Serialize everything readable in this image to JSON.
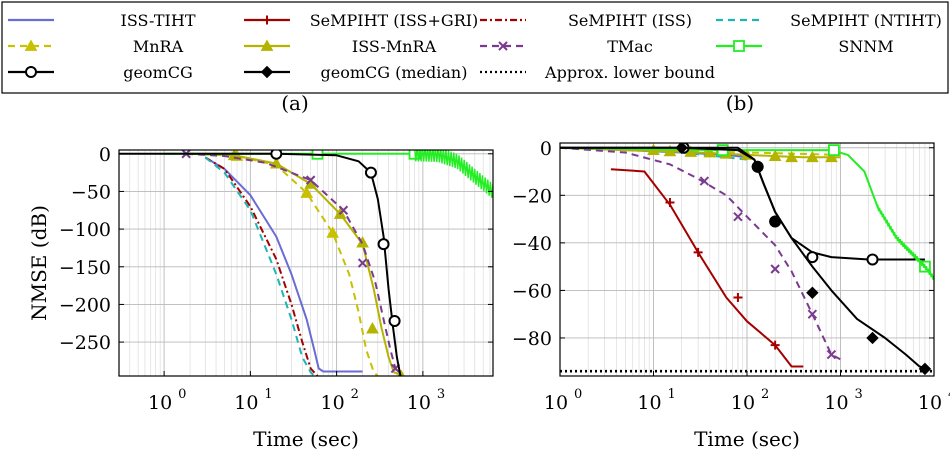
{
  "legend": {
    "entries": [
      {
        "label": "ISS-TIHT",
        "color": "#6b6bd6",
        "dash": "solid",
        "marker": "none"
      },
      {
        "label": "SeMPIHT (ISS+GRI)",
        "color": "#a50000",
        "dash": "solid",
        "marker": "plus"
      },
      {
        "label": "SeMPIHT (ISS)",
        "color": "#a50000",
        "dash": "dashdot",
        "marker": "none"
      },
      {
        "label": "SeMPIHT (NTIHT)",
        "color": "#1fb5b5",
        "dash": "dashed",
        "marker": "none"
      },
      {
        "label": "MnRA",
        "color": "#c8c000",
        "dash": "dashed",
        "marker": "triangle"
      },
      {
        "label": "ISS-MnRA",
        "color": "#b4b400",
        "dash": "solid",
        "marker": "triangle"
      },
      {
        "label": "TMac",
        "color": "#7a3b8f",
        "dash": "dashed",
        "marker": "cross"
      },
      {
        "label": "SNNM",
        "color": "#22ee22",
        "dash": "solid",
        "marker": "square"
      },
      {
        "label": "geomCG",
        "color": "#000000",
        "dash": "solid",
        "marker": "circle"
      },
      {
        "label": "geomCG (median)",
        "color": "#000000",
        "dash": "solid",
        "marker": "diamond"
      },
      {
        "label": "Approx. lower bound",
        "color": "#000000",
        "dash": "dotted",
        "marker": "none"
      }
    ]
  },
  "chart_data": [
    {
      "type": "line",
      "panel_label": "(a)",
      "xlabel": "Time (sec)",
      "ylabel": "NMSE (dB)",
      "xscale": "log",
      "xlim": [
        0.3,
        6500
      ],
      "ylim": [
        -295,
        5
      ],
      "xticks": [
        1,
        10,
        100,
        1000
      ],
      "xtick_labels": [
        "10",
        "10",
        "10",
        "10"
      ],
      "xtick_exponents": [
        "0",
        "1",
        "2",
        "3"
      ],
      "yticks": [
        0,
        -50,
        -100,
        -150,
        -200,
        -250
      ],
      "ytick_labels": [
        "0",
        "−50",
        "−100",
        "−150",
        "−200",
        "−250"
      ],
      "grid": true,
      "series": [
        {
          "name": "ISS-TIHT",
          "color": "#6b6bd6",
          "dash": "solid",
          "marker": "none",
          "x": [
            3,
            5,
            10,
            20,
            30,
            45,
            55,
            62,
            70,
            200
          ],
          "y": [
            -5,
            -20,
            -55,
            -110,
            -160,
            -220,
            -260,
            -285,
            -289,
            -289
          ]
        },
        {
          "name": "SeMPIHT (ISS)",
          "color": "#a50000",
          "dash": "dashdot",
          "marker": "none",
          "x": [
            3,
            5,
            10,
            20,
            30,
            40,
            50,
            60
          ],
          "y": [
            -5,
            -20,
            -70,
            -140,
            -200,
            -250,
            -285,
            -295
          ]
        },
        {
          "name": "SeMPIHT (NTIHT)",
          "color": "#1fb5b5",
          "dash": "dashed",
          "marker": "none",
          "x": [
            3,
            5,
            10,
            20,
            30,
            40,
            50,
            55
          ],
          "y": [
            -5,
            -25,
            -75,
            -160,
            -220,
            -270,
            -290,
            -295
          ]
        },
        {
          "name": "MnRA",
          "color": "#c8c000",
          "dash": "dashed",
          "marker": "triangle",
          "x": [
            2,
            7,
            20,
            45,
            90,
            140,
            180,
            220,
            270,
            300
          ],
          "y": [
            0,
            -3,
            -15,
            -52,
            -105,
            -160,
            -210,
            -260,
            -290,
            -295
          ],
          "markers_x": [
            7,
            45,
            90
          ],
          "markers_y": [
            -3,
            -52,
            -105
          ]
        },
        {
          "name": "ISS-MnRA",
          "color": "#b4b400",
          "dash": "solid",
          "marker": "triangle",
          "x": [
            2,
            6.5,
            20,
            50,
            110,
            200,
            270,
            330,
            400,
            460,
            600
          ],
          "y": [
            0,
            -2,
            -13,
            -40,
            -80,
            -120,
            -180,
            -230,
            -270,
            -290,
            -295
          ],
          "markers_x": [
            6.5,
            20,
            50,
            110,
            200,
            260,
            560
          ],
          "markers_y": [
            -2,
            -13,
            -40,
            -80,
            -118,
            -232,
            -295
          ]
        },
        {
          "name": "TMac",
          "color": "#7a3b8f",
          "dash": "dashed",
          "marker": "cross",
          "x": [
            1.8,
            5,
            15,
            50,
            120,
            200,
            280,
            350,
            420,
            480,
            550
          ],
          "y": [
            0,
            -3,
            -12,
            -35,
            -75,
            -120,
            -170,
            -220,
            -260,
            -285,
            -295
          ],
          "markers_x": [
            1.8,
            50,
            120,
            200,
            480
          ],
          "markers_y": [
            0,
            -35,
            -75,
            -145,
            -285
          ]
        },
        {
          "name": "SNNM",
          "color": "#22ee22",
          "dash": "solid",
          "marker": "square",
          "x": [
            1,
            60,
            800,
            1500,
            2500,
            4000,
            6500
          ],
          "y": [
            0,
            0,
            0,
            -1,
            -10,
            -30,
            -50
          ],
          "markers_x": [
            60,
            800
          ],
          "markers_y": [
            0,
            0
          ]
        },
        {
          "name": "geomCG",
          "color": "#000000",
          "dash": "solid",
          "marker": "circle",
          "x": [
            0.3,
            20,
            100,
            180,
            250,
            300,
            350,
            400,
            450,
            500,
            550
          ],
          "y": [
            0,
            0,
            -2,
            -10,
            -25,
            -60,
            -110,
            -180,
            -230,
            -270,
            -295
          ],
          "markers_x": [
            20,
            250,
            350,
            470
          ],
          "markers_y": [
            0,
            -25,
            -120,
            -222
          ]
        }
      ]
    },
    {
      "type": "line",
      "panel_label": "(b)",
      "xlabel": "Time (sec)",
      "ylabel": "",
      "xscale": "log",
      "xlim": [
        1,
        10000
      ],
      "ylim": [
        -96,
        2
      ],
      "xticks": [
        1,
        10,
        100,
        1000,
        10000
      ],
      "xtick_labels": [
        "10",
        "10",
        "10",
        "10",
        "10"
      ],
      "xtick_exponents": [
        "0",
        "1",
        "2",
        "3",
        "4"
      ],
      "yticks": [
        0,
        -20,
        -40,
        -60,
        -80
      ],
      "ytick_labels": [
        "0",
        "−20",
        "−40",
        "−60",
        "−80"
      ],
      "grid": true,
      "series": [
        {
          "name": "ISS-TIHT",
          "color": "#6b6bd6",
          "dash": "solid",
          "marker": "none",
          "x": [
            1,
            5,
            20,
            60,
            100
          ],
          "y": [
            0,
            -1,
            -2,
            -3,
            -4
          ]
        },
        {
          "name": "SeMPIHT (NTIHT)",
          "color": "#1fb5b5",
          "dash": "dashed",
          "marker": "none",
          "x": [
            1,
            5,
            20,
            60,
            100
          ],
          "y": [
            0,
            -1,
            -2,
            -4,
            -5
          ]
        },
        {
          "name": "MnRA",
          "color": "#c8c000",
          "dash": "dashed",
          "marker": "triangle",
          "x": [
            1,
            10,
            100,
            1000
          ],
          "y": [
            0,
            -1,
            -2,
            -3
          ],
          "markers_x": [],
          "markers_y": []
        },
        {
          "name": "ISS-MnRA",
          "color": "#b4b400",
          "dash": "solid",
          "marker": "triangle",
          "x": [
            1,
            5,
            15,
            30,
            60,
            100,
            200,
            400,
            700,
            1000
          ],
          "y": [
            0,
            -1,
            -1.5,
            -2,
            -2.5,
            -3,
            -3.5,
            -4,
            -4,
            -4
          ],
          "markers_x": [
            10,
            15,
            25,
            40,
            60,
            100,
            200,
            300,
            500,
            800
          ],
          "markers_y": [
            -1,
            -1.5,
            -1.8,
            -2,
            -2.5,
            -3,
            -3.5,
            -4,
            -4,
            -4
          ]
        },
        {
          "name": "SeMPIHT (ISS+GRI)",
          "color": "#a50000",
          "dash": "solid",
          "marker": "plus",
          "x": [
            3.5,
            8,
            15,
            30,
            60,
            100,
            200,
            300,
            400
          ],
          "y": [
            -9,
            -10,
            -24,
            -44,
            -63,
            -73,
            -83,
            -92,
            -92
          ],
          "markers_x": [
            15,
            30,
            80,
            200
          ],
          "markers_y": [
            -23,
            -44,
            -63,
            -83
          ]
        },
        {
          "name": "TMac",
          "color": "#7a3b8f",
          "dash": "dashed",
          "marker": "cross",
          "x": [
            1,
            5,
            15,
            30,
            60,
            100,
            200,
            300,
            500,
            800,
            1000
          ],
          "y": [
            0,
            -2,
            -7,
            -13,
            -20,
            -29,
            -41,
            -52,
            -70,
            -87,
            -89
          ],
          "markers_x": [
            35,
            80,
            200,
            500,
            800
          ],
          "markers_y": [
            -14,
            -29,
            -51,
            -70,
            -87
          ]
        },
        {
          "name": "SNNM",
          "color": "#22ee22",
          "dash": "solid",
          "marker": "square",
          "x": [
            1,
            50,
            100,
            300,
            800,
            1200,
            1800,
            2500,
            4000,
            6000,
            8000,
            10000
          ],
          "y": [
            0,
            -1,
            -1,
            -1,
            -1,
            -3,
            -10,
            -25,
            -38,
            -45,
            -50,
            -55
          ],
          "markers_x": [
            55,
            850,
            8000
          ],
          "markers_y": [
            -1,
            -1,
            -50
          ]
        },
        {
          "name": "geomCG",
          "color": "#000000",
          "dash": "solid",
          "marker": "circle",
          "x": [
            1,
            20,
            80,
            120,
            150,
            200,
            300,
            500,
            800,
            2000,
            5000,
            8000
          ],
          "y": [
            0,
            0,
            0,
            -5,
            -15,
            -27,
            -38,
            -44,
            -46,
            -47,
            -47,
            -47
          ],
          "markers_x": [
            21,
            130,
            200,
            500,
            2200
          ],
          "markers_y": [
            0,
            -8,
            -31,
            -46,
            -47
          ]
        },
        {
          "name": "geomCG (median)",
          "color": "#000000",
          "dash": "solid",
          "marker": "diamond",
          "x": [
            1,
            20,
            80,
            120,
            150,
            200,
            300,
            500,
            800,
            1500,
            3000,
            5000,
            7000,
            8500
          ],
          "y": [
            0,
            0,
            -1,
            -5,
            -15,
            -27,
            -38,
            -50,
            -60,
            -72,
            -80,
            -87,
            -92,
            -93
          ],
          "markers_x": [
            20,
            130,
            200,
            500,
            2200,
            8000
          ],
          "markers_y": [
            0,
            -8,
            -31,
            -61,
            -80,
            -93
          ]
        },
        {
          "name": "Approx. lower bound",
          "color": "#000000",
          "dash": "dotted",
          "marker": "none",
          "x": [
            1,
            10000
          ],
          "y": [
            -94,
            -94
          ]
        }
      ]
    }
  ]
}
